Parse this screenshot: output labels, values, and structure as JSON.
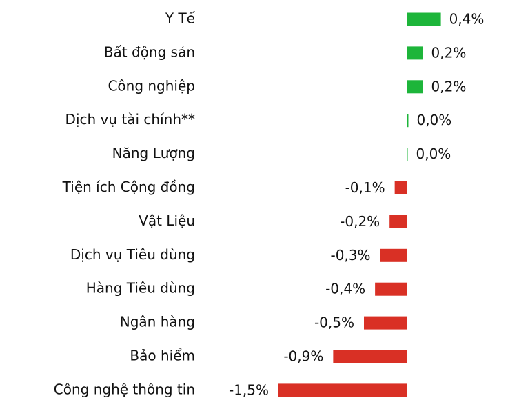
{
  "chart_data": {
    "type": "bar",
    "orientation": "horizontal",
    "categories": [
      "Y Tế",
      "Bất động sản",
      "Công nghiệp",
      "Dịch vụ tài chính**",
      "Năng Lượng",
      "Tiện ích Cộng đồng",
      "Vật Liệu",
      "Dịch vụ Tiêu dùng",
      "Hàng Tiêu dùng",
      "Ngân hàng",
      "Bảo hiểm",
      "Công nghệ thông tin"
    ],
    "values": [
      0.4,
      0.19,
      0.19,
      0.02,
      0.01,
      -0.14,
      -0.2,
      -0.31,
      -0.37,
      -0.5,
      -0.86,
      -1.5
    ],
    "value_labels": [
      "0,4%",
      "0,2%",
      "0,2%",
      "0,0%",
      "0,0%",
      "-0,1%",
      "-0,2%",
      "-0,3%",
      "-0,4%",
      "-0,5%",
      "-0,9%",
      "-1,5%"
    ],
    "positive_color": "#1db53a",
    "negative_color": "#d93025"
  }
}
